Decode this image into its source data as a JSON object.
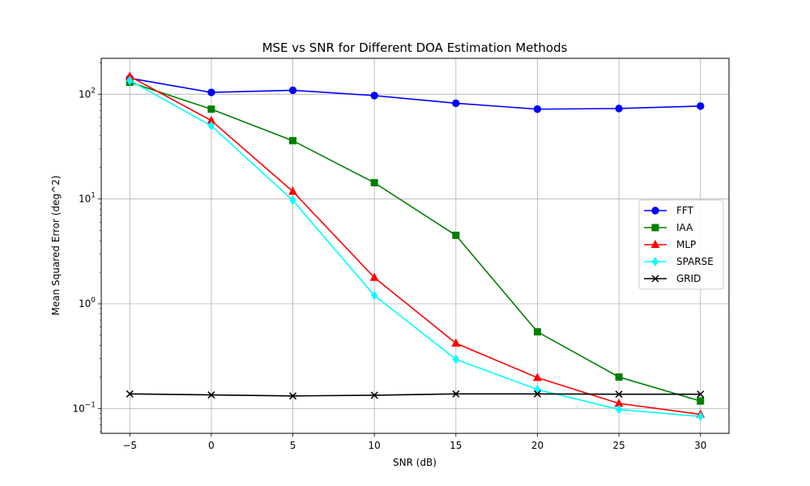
{
  "chart_data": {
    "type": "line",
    "title": "MSE vs SNR for Different DOA Estimation Methods",
    "xlabel": "SNR (dB)",
    "ylabel": "Mean Squared Error (deg^2)",
    "x": [
      -5,
      0,
      5,
      10,
      15,
      20,
      25,
      30
    ],
    "xlim": [
      -6.75,
      31.75
    ],
    "ylim": [
      0.058,
      220
    ],
    "yscale": "log",
    "grid": true,
    "legend_position": "center-right",
    "x_ticks": [
      -5,
      0,
      5,
      10,
      15,
      20,
      25,
      30
    ],
    "x_tick_labels": [
      "−5",
      "0",
      "5",
      "10",
      "15",
      "20",
      "25",
      "30"
    ],
    "y_ticks": [
      {
        "value": 0.1,
        "base": "10",
        "exp": "−1"
      },
      {
        "value": 1,
        "base": "10",
        "exp": "0"
      },
      {
        "value": 10,
        "base": "10",
        "exp": "1"
      },
      {
        "value": 100,
        "base": "10",
        "exp": "2"
      }
    ],
    "series": [
      {
        "name": "FFT",
        "color": "#0000ff",
        "marker": "circle",
        "values": [
          142,
          104,
          109,
          97,
          82,
          72,
          73,
          77
        ]
      },
      {
        "name": "IAA",
        "color": "#008000",
        "marker": "square",
        "values": [
          130,
          72,
          36,
          14.3,
          4.5,
          0.54,
          0.2,
          0.118
        ]
      },
      {
        "name": "MLP",
        "color": "#ff0000",
        "marker": "triangle",
        "values": [
          148,
          56,
          11.8,
          1.78,
          0.42,
          0.197,
          0.112,
          0.088
        ]
      },
      {
        "name": "SPARSE",
        "color": "#00ffff",
        "marker": "diamond",
        "values": [
          135,
          50,
          9.7,
          1.2,
          0.295,
          0.152,
          0.098,
          0.084
        ]
      },
      {
        "name": "GRID",
        "color": "#000000",
        "marker": "x",
        "values": [
          0.138,
          0.135,
          0.132,
          0.134,
          0.138,
          0.138,
          0.137,
          0.137
        ]
      }
    ]
  }
}
